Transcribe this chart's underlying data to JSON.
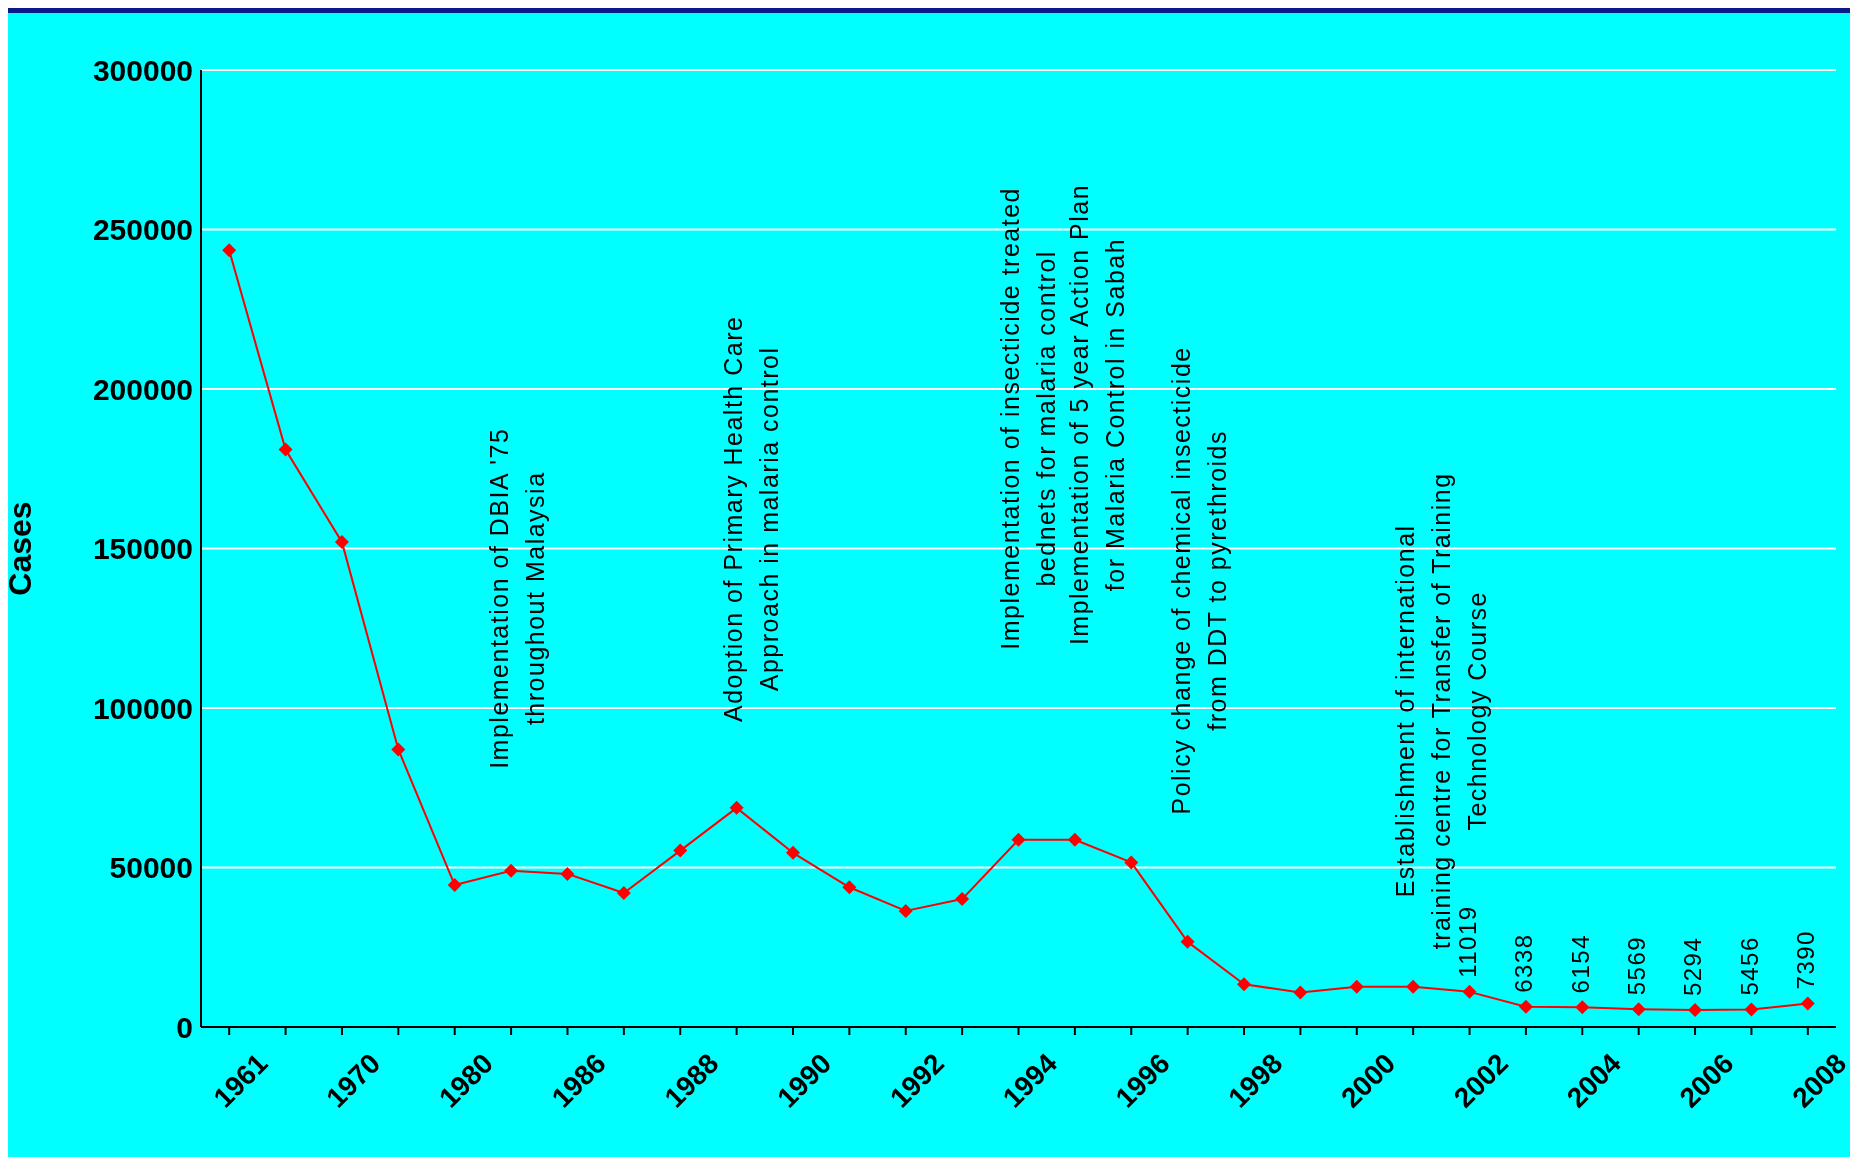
{
  "chart_data": {
    "type": "line",
    "ylabel": "Cases",
    "categories": [
      "1961",
      null,
      "1970",
      null,
      "1980",
      null,
      "1986",
      null,
      "1988",
      null,
      "1990",
      null,
      "1992",
      null,
      "1994",
      null,
      "1996",
      null,
      "1998",
      null,
      "2000",
      null,
      "2002",
      null,
      "2004",
      null,
      "2006",
      null,
      "2008"
    ],
    "series": [
      {
        "color": "#ff0000",
        "values": [
          243500,
          181000,
          152000,
          87000,
          44500,
          49000,
          48000,
          42000,
          55300,
          68700,
          54600,
          43800,
          36400,
          40100,
          58700,
          58700,
          51600,
          26700,
          13400,
          10800,
          12600,
          12600,
          11019,
          6338,
          6154,
          5569,
          5294,
          5456,
          7390
        ],
        "value_labels": [
          null,
          null,
          null,
          null,
          null,
          null,
          null,
          null,
          null,
          null,
          null,
          null,
          null,
          null,
          null,
          null,
          null,
          null,
          null,
          null,
          null,
          null,
          "11019",
          "6338",
          "6154",
          "5569",
          "5294",
          "5456",
          "7390"
        ]
      }
    ],
    "ylim": [
      0,
      300000
    ],
    "yticks": [
      0,
      50000,
      100000,
      150000,
      200000,
      250000,
      300000
    ],
    "grid": "y",
    "marker": "diamond",
    "line_style": "solid",
    "legend": false,
    "annotations": [
      "Implementation of DBIA '75\nthroughout Malaysia",
      "Adoption of Primary Health Care\nApproach in malaria control",
      "Implementation of insecticide treated\nbednets for malaria control",
      "Implementation of 5 year Action Plan\nfor Malaria Control in Sabah",
      "Policy change of chemical insecticide\nfrom DDT to pyrethroids",
      "Establishment of international\ntraining centre for Transfer of Training\nTechnology Course"
    ]
  }
}
